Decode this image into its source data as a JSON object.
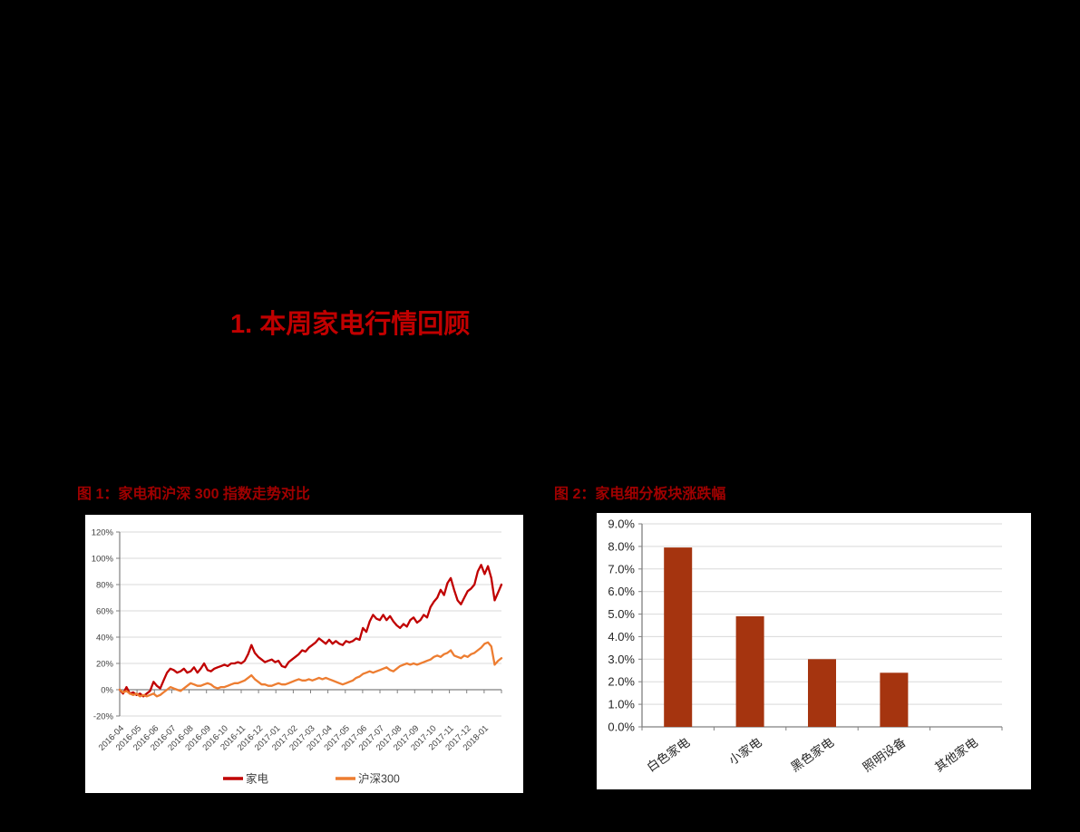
{
  "page": {
    "background": "#000000",
    "heading": "1. 本周家电行情回顾",
    "heading_color": "#C00000",
    "caption_color": "#A00000"
  },
  "figures": [
    {
      "caption": "图 1：家电和沪深 300 指数走势对比"
    },
    {
      "caption": "图 2：家电细分板块涨跌幅"
    }
  ],
  "chart_data": [
    {
      "type": "line",
      "title": "家电和沪深300指数走势对比",
      "xlabel": "",
      "ylabel": "",
      "ylim": [
        -20,
        120
      ],
      "grid": true,
      "legend_position": "bottom",
      "axis_color": "#808080",
      "grid_color": "#D9D9D9",
      "tick_label_color": "#404040",
      "y_ticks": [
        {
          "label": "120%",
          "value": 120
        },
        {
          "label": "100%",
          "value": 100
        },
        {
          "label": "80%",
          "value": 80
        },
        {
          "label": "60%",
          "value": 60
        },
        {
          "label": "40%",
          "value": 40
        },
        {
          "label": "20%",
          "value": 20
        },
        {
          "label": "0%",
          "value": 0
        },
        {
          "label": "-20%",
          "value": -20
        }
      ],
      "x_labels": [
        "2016-04",
        "2016-05",
        "2016-06",
        "2016-07",
        "2016-08",
        "2016-09",
        "2016-10",
        "2016-11",
        "2016-12",
        "2017-01",
        "2017-02",
        "2017-03",
        "2017-04",
        "2017-05",
        "2017-06",
        "2017-07",
        "2017-08",
        "2017-09",
        "2017-10",
        "2017-11",
        "2017-12",
        "2018-01"
      ],
      "series": [
        {
          "name": "家电",
          "color": "#C00000",
          "values": [
            0,
            -3,
            2,
            -3,
            -2,
            -4,
            -3,
            -5,
            -3,
            -1,
            6,
            3,
            1,
            7,
            13,
            16,
            15,
            13,
            14,
            16,
            13,
            14,
            17,
            13,
            16,
            20,
            15,
            14,
            16,
            17,
            18,
            19,
            18,
            20,
            20,
            21,
            20,
            22,
            27,
            34,
            28,
            25,
            23,
            21,
            22,
            23,
            21,
            22,
            18,
            17,
            21,
            23,
            25,
            27,
            30,
            29,
            32,
            34,
            36,
            39,
            37,
            35,
            38,
            35,
            37,
            35,
            34,
            37,
            36,
            37,
            39,
            38,
            47,
            44,
            52,
            57,
            54,
            53,
            57,
            53,
            56,
            52,
            49,
            47,
            50,
            48,
            53,
            55,
            51,
            53,
            57,
            55,
            63,
            67,
            70,
            76,
            72,
            81,
            85,
            76,
            68,
            65,
            70,
            75,
            77,
            80,
            90,
            95,
            88,
            94,
            85,
            68,
            74,
            80
          ]
        },
        {
          "name": "沪深300",
          "color": "#ED7D31",
          "values": [
            0,
            -2,
            -1,
            -3,
            -4,
            -3,
            -5,
            -4,
            -5,
            -4,
            -3,
            -5,
            -4,
            -2,
            0,
            2,
            1,
            0,
            -1,
            1,
            3,
            5,
            4,
            3,
            3,
            4,
            5,
            4,
            2,
            1,
            2,
            2,
            3,
            4,
            5,
            5,
            6,
            7,
            9,
            11,
            8,
            6,
            4,
            4,
            3,
            3,
            4,
            5,
            4,
            4,
            5,
            6,
            7,
            8,
            7,
            7,
            8,
            7,
            8,
            9,
            8,
            9,
            8,
            7,
            6,
            5,
            4,
            5,
            6,
            7,
            9,
            10,
            12,
            13,
            14,
            13,
            14,
            15,
            16,
            17,
            15,
            14,
            16,
            18,
            19,
            20,
            19,
            20,
            19,
            20,
            21,
            22,
            23,
            25,
            26,
            25,
            27,
            28,
            30,
            26,
            25,
            24,
            26,
            25,
            27,
            28,
            30,
            32,
            35,
            36,
            33,
            19,
            22,
            24
          ]
        }
      ]
    },
    {
      "type": "bar",
      "title": "家电细分板块涨跌幅",
      "xlabel": "",
      "ylabel": "",
      "ylim": [
        0,
        9
      ],
      "grid": true,
      "axis_color": "#808080",
      "grid_color": "#D9D9D9",
      "tick_label_color": "#262626",
      "bar_color": "#A5340F",
      "categories": [
        "白色家电",
        "小家电",
        "黑色家电",
        "照明设备",
        "其他家电"
      ],
      "values": [
        7.95,
        4.9,
        3.0,
        2.4,
        0.0
      ],
      "y_ticks": [
        "9.0%",
        "8.0%",
        "7.0%",
        "6.0%",
        "5.0%",
        "4.0%",
        "3.0%",
        "2.0%",
        "1.0%",
        "0.0%"
      ]
    }
  ]
}
